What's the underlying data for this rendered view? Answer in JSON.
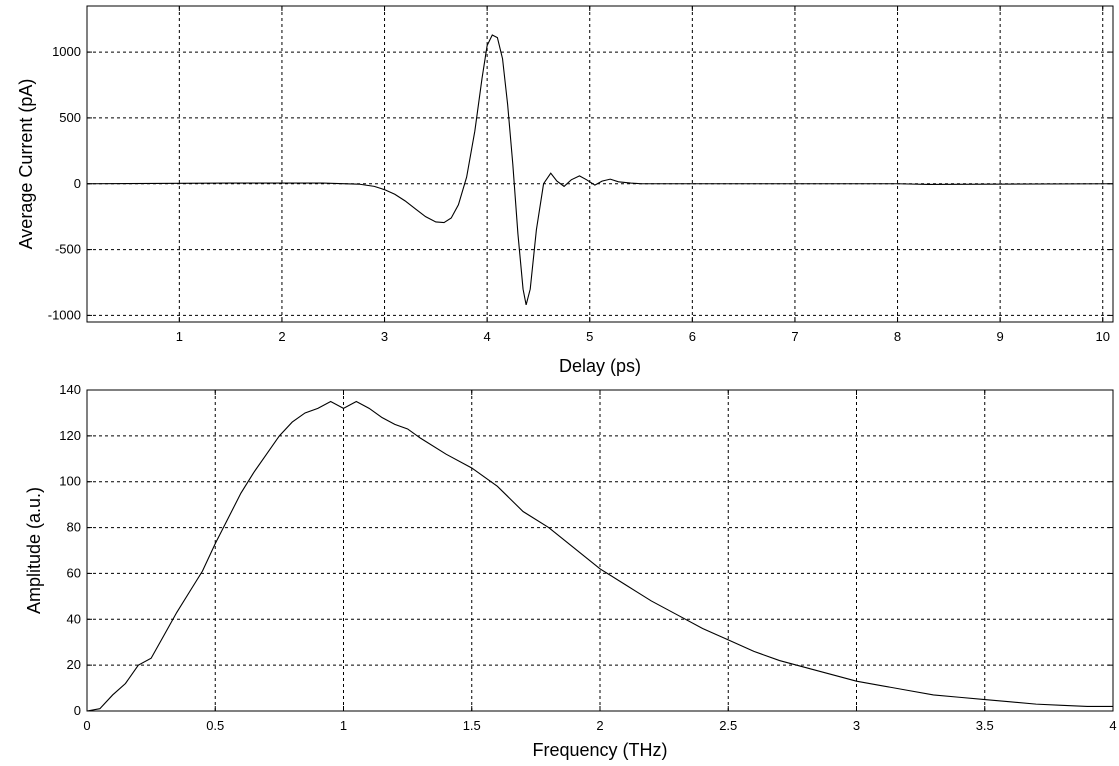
{
  "chart_data": [
    {
      "type": "line",
      "title": "",
      "xlabel": "Delay (ps)",
      "ylabel": "Average Current (pA)",
      "xlim": [
        0.1,
        10.1
      ],
      "ylim": [
        -1050,
        1350
      ],
      "xticks": [
        1,
        2,
        3,
        4,
        5,
        6,
        7,
        8,
        9,
        10
      ],
      "yticks": [
        -1000,
        -500,
        0,
        500,
        1000
      ],
      "grid": true,
      "series": [
        {
          "x": [
            0.1,
            1.5,
            2.4,
            2.75,
            2.9,
            3.0,
            3.1,
            3.2,
            3.3,
            3.4,
            3.5,
            3.58,
            3.65,
            3.72,
            3.8,
            3.88,
            3.95,
            4.0,
            4.05,
            4.1,
            4.15,
            4.2,
            4.25,
            4.3,
            4.35,
            4.38,
            4.42,
            4.48,
            4.55,
            4.62,
            4.68,
            4.75,
            4.82,
            4.9,
            4.97,
            5.05,
            5.12,
            5.2,
            5.28,
            5.4,
            5.5,
            6.0,
            8.0,
            8.3,
            10.1
          ],
          "y": [
            0,
            5,
            5,
            -3,
            -20,
            -45,
            -80,
            -130,
            -190,
            -250,
            -290,
            -295,
            -260,
            -160,
            50,
            400,
            800,
            1050,
            1130,
            1110,
            950,
            600,
            150,
            -380,
            -800,
            -920,
            -800,
            -350,
            0,
            80,
            20,
            -20,
            30,
            60,
            30,
            -10,
            20,
            35,
            15,
            5,
            0,
            0,
            0,
            -5,
            0
          ]
        }
      ]
    },
    {
      "type": "line",
      "title": "",
      "xlabel": "Frequency (THz)",
      "ylabel": "Amplitude (a.u.)",
      "xlim": [
        0,
        4
      ],
      "ylim": [
        0,
        140
      ],
      "xticks": [
        0,
        0.5,
        1,
        1.5,
        2,
        2.5,
        3,
        3.5,
        4
      ],
      "yticks": [
        0,
        20,
        40,
        60,
        80,
        100,
        120,
        140
      ],
      "grid": true,
      "series": [
        {
          "x": [
            0,
            0.05,
            0.1,
            0.15,
            0.2,
            0.25,
            0.3,
            0.35,
            0.4,
            0.45,
            0.5,
            0.55,
            0.6,
            0.65,
            0.7,
            0.75,
            0.8,
            0.85,
            0.9,
            0.95,
            1.0,
            1.05,
            1.1,
            1.15,
            1.2,
            1.25,
            1.3,
            1.4,
            1.5,
            1.6,
            1.7,
            1.8,
            1.9,
            2.0,
            2.1,
            2.2,
            2.3,
            2.4,
            2.5,
            2.6,
            2.7,
            2.8,
            2.9,
            3.0,
            3.1,
            3.2,
            3.3,
            3.4,
            3.5,
            3.6,
            3.7,
            3.8,
            3.9,
            4.0
          ],
          "y": [
            0,
            1,
            7,
            12,
            20,
            23,
            33,
            43,
            52,
            61,
            73,
            84,
            95,
            104,
            112,
            120,
            126,
            130,
            132,
            135,
            132,
            135,
            132,
            128,
            125,
            123,
            119,
            112,
            106,
            98,
            87,
            80,
            71,
            62,
            55,
            48,
            42,
            36,
            31,
            26,
            22,
            19,
            16,
            13,
            11,
            9,
            7,
            6,
            5,
            4,
            3,
            2.5,
            2,
            2
          ]
        }
      ]
    }
  ]
}
